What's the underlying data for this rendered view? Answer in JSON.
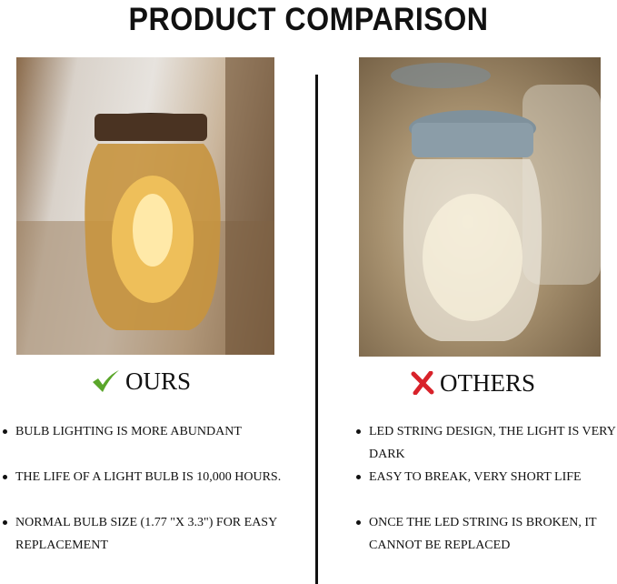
{
  "title": "PRODUCT COMPARISON",
  "ours": {
    "heading": "OURS",
    "icon": "check-icon",
    "icon_color": "#5aa62a",
    "points": [
      "BULB LIGHTING IS MORE ABUNDANT",
      "THE LIFE OF A LIGHT BULB IS 10,000 HOURS.",
      "NORMAL BULB SIZE (1.77 \"X 3.3\") FOR EASY REPLACEMENT"
    ]
  },
  "others": {
    "heading": "OTHERS",
    "icon": "cross-icon",
    "icon_color": "#d8222a",
    "points": [
      "LED STRING DESIGN, THE LIGHT IS VERY DARK",
      "EASY TO BREAK, VERY SHORT LIFE",
      "ONCE THE LED STRING IS BROKEN, IT CANNOT BE REPLACED"
    ]
  }
}
